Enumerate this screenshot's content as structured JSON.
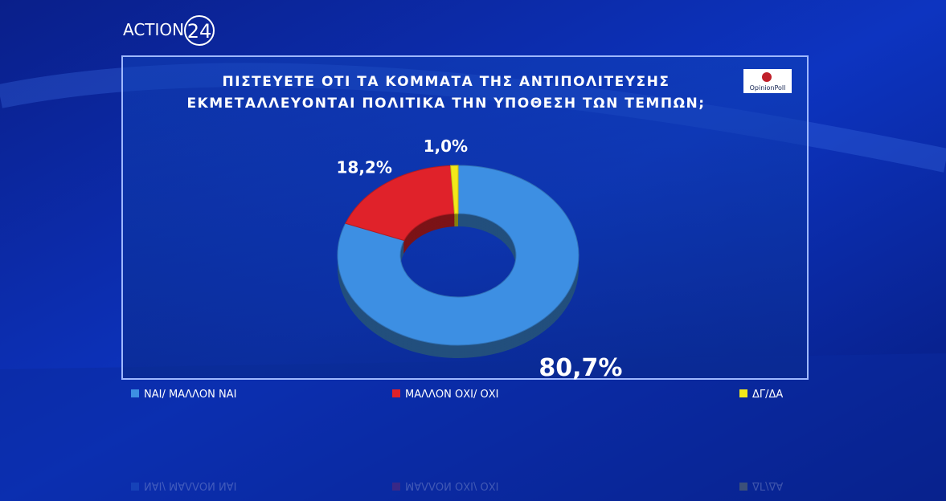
{
  "branding": {
    "channel": "ACTION",
    "channel_number": "24",
    "pollster": "OpinionPoll"
  },
  "chart_data": {
    "type": "pie",
    "title": [
      "ΠΙΣΤΕΥΕΤΕ ΟΤΙ ΤΑ ΚΟΜΜΑΤΑ ΤΗΣ ΑΝΤΙΠΟΛΙΤΕΥΣΗΣ",
      "ΕΚΜΕΤΑΛΛΕΥΟΝΤΑΙ ΠΟΛΙΤΙΚΑ ΤΗΝ ΥΠΟΘΕΣΗ ΤΩΝ ΤΕΜΠΩΝ;"
    ],
    "series": [
      {
        "name": "ΝΑΙ/ ΜΑΛΛΟΝ ΝΑΙ",
        "color": "#3d8fe3",
        "values": [
          80.7
        ],
        "value_labels": [
          "80,7%"
        ]
      },
      {
        "name": "ΜΑΛΛΟΝ ΟΧΙ/ ΟΧΙ",
        "color": "#e0222a",
        "values": [
          18.2
        ],
        "value_labels": [
          "18,2%"
        ]
      },
      {
        "name": "ΔΓ/ΔΑ",
        "color": "#f2e81a",
        "values": [
          1.0
        ],
        "value_labels": [
          "1,0%"
        ]
      }
    ]
  }
}
